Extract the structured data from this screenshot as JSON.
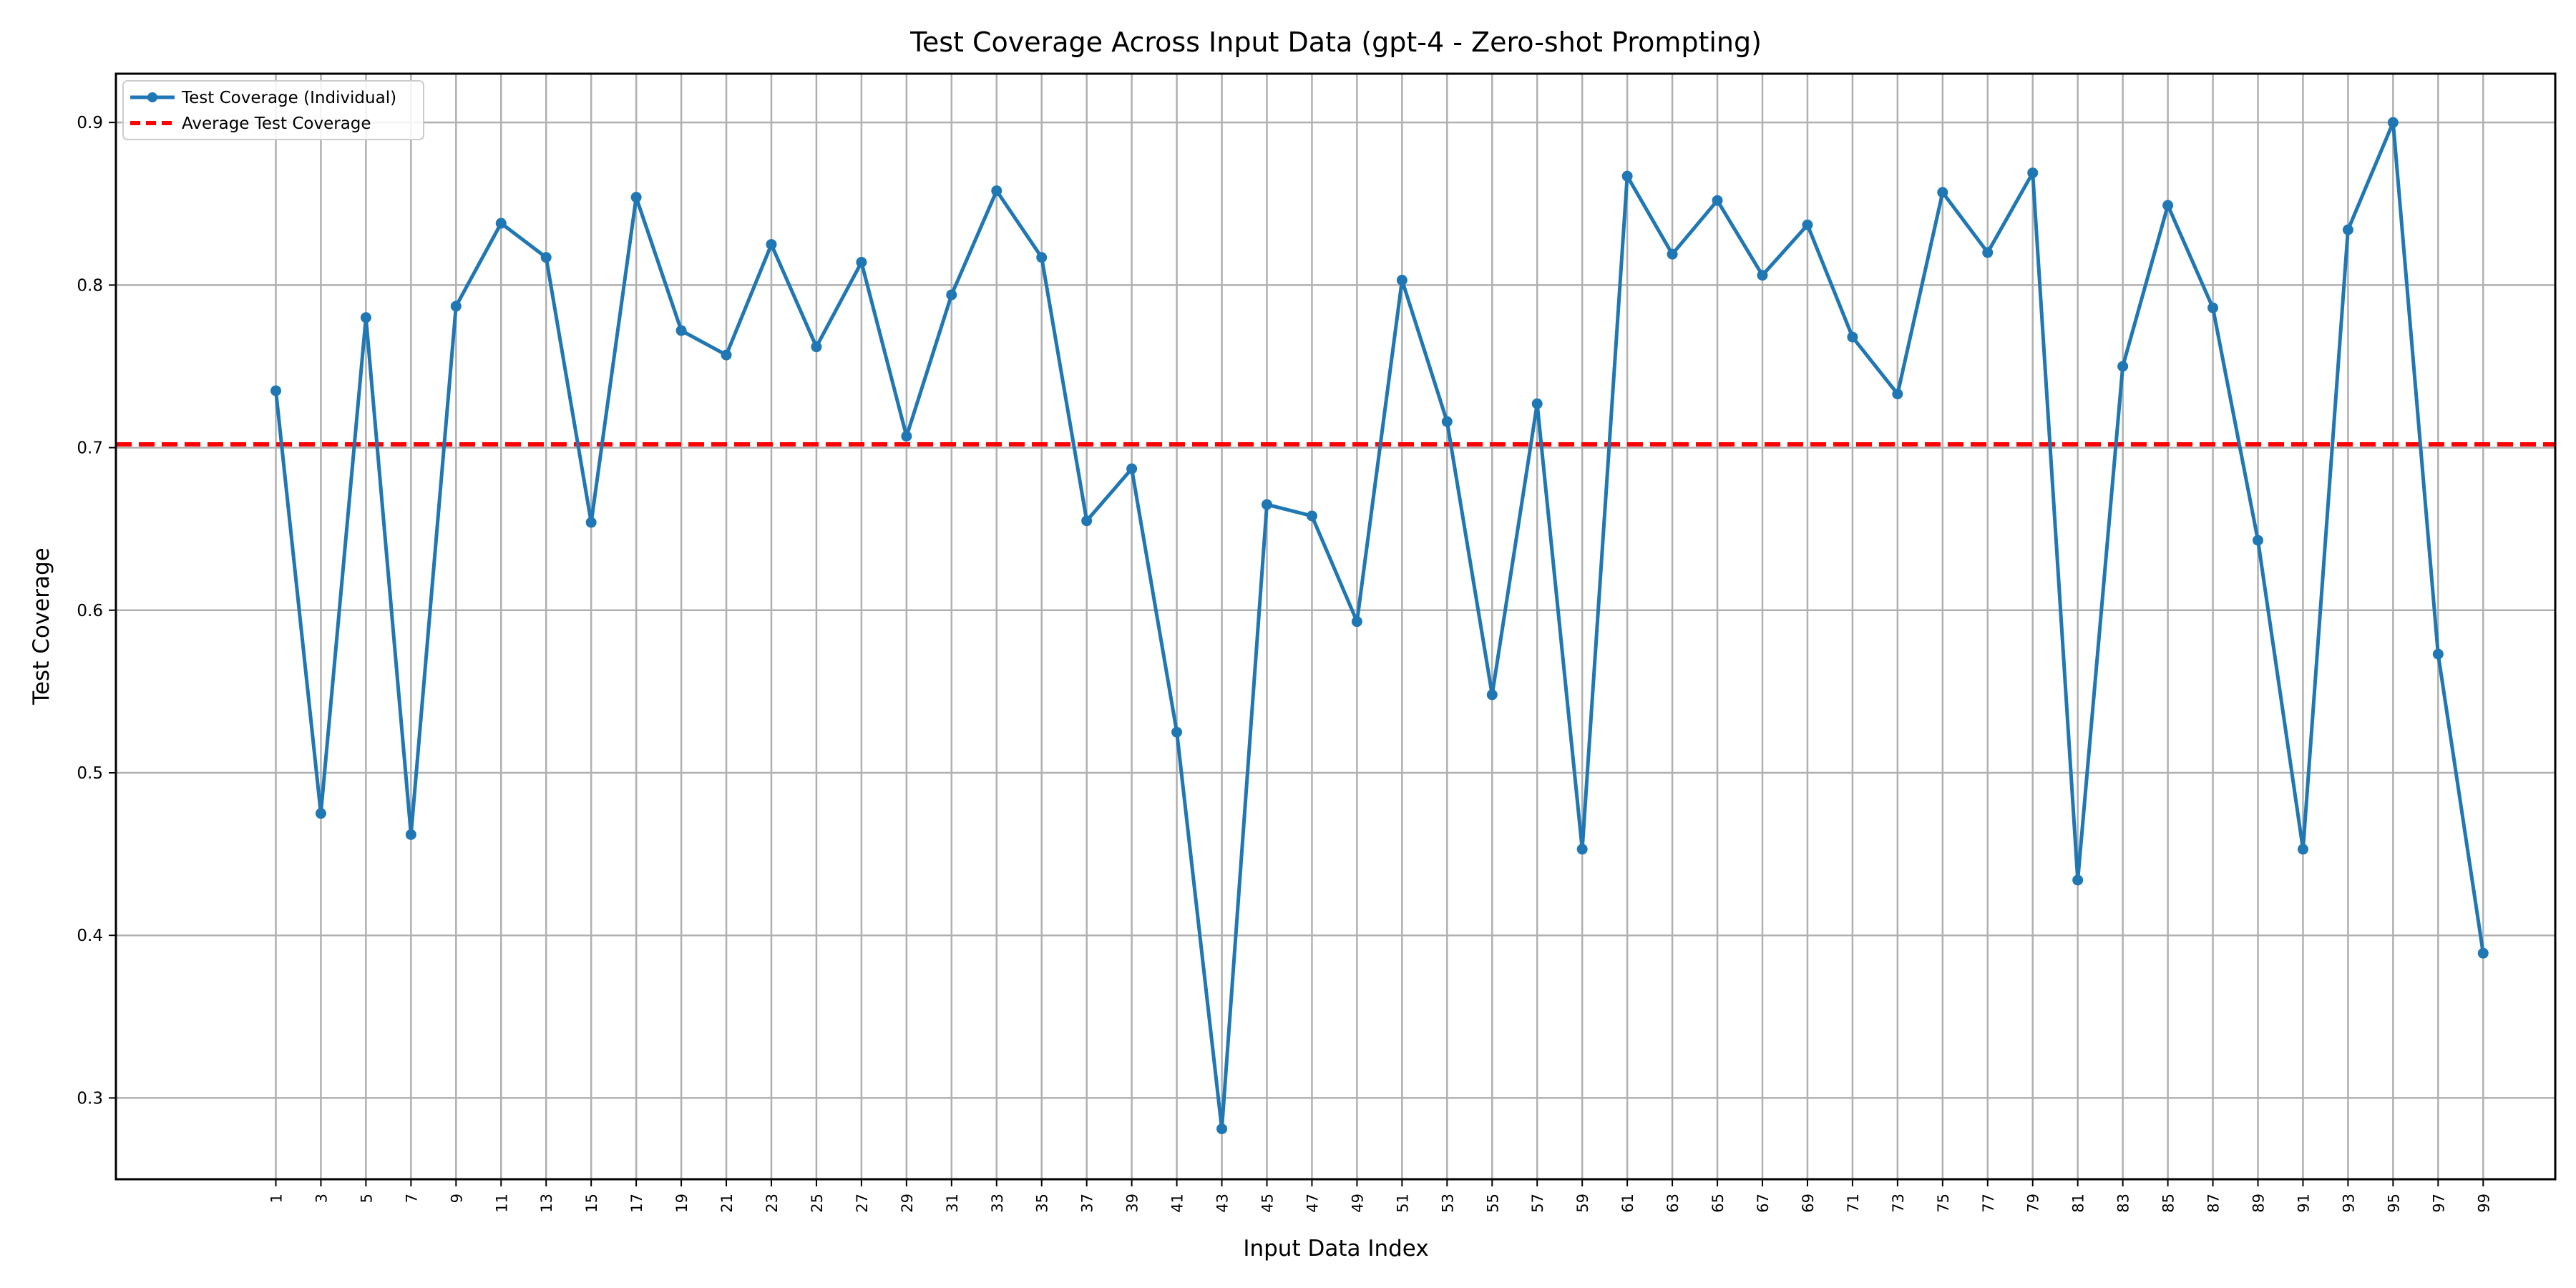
{
  "chart_data": {
    "type": "line",
    "title": "Test Coverage Across Input Data (gpt-4 - Zero-shot Prompting)",
    "xlabel": "Input Data Index",
    "ylabel": "Test Coverage",
    "x": [
      1,
      3,
      5,
      7,
      9,
      11,
      13,
      15,
      17,
      19,
      21,
      23,
      25,
      27,
      29,
      31,
      33,
      35,
      37,
      39,
      41,
      43,
      45,
      47,
      49,
      51,
      53,
      55,
      57,
      59,
      61,
      63,
      65,
      67,
      69,
      71,
      73,
      75,
      77,
      79,
      81,
      83,
      85,
      87,
      89,
      91,
      93,
      95,
      97,
      99
    ],
    "x_ticks": [
      "1",
      "3",
      "5",
      "7",
      "9",
      "11",
      "13",
      "15",
      "17",
      "19",
      "21",
      "23",
      "25",
      "27",
      "29",
      "31",
      "33",
      "35",
      "37",
      "39",
      "41",
      "43",
      "45",
      "47",
      "49",
      "51",
      "53",
      "55",
      "57",
      "59",
      "61",
      "63",
      "65",
      "67",
      "69",
      "71",
      "73",
      "75",
      "77",
      "79",
      "81",
      "83",
      "85",
      "87",
      "89",
      "91",
      "93",
      "95",
      "97",
      "99"
    ],
    "y_ticks": [
      "0.3",
      "0.4",
      "0.5",
      "0.6",
      "0.7",
      "0.8",
      "0.9"
    ],
    "y_tick_values": [
      0.3,
      0.4,
      0.5,
      0.6,
      0.7,
      0.8,
      0.9
    ],
    "xlim": [
      -6.1,
      102.2
    ],
    "ylim": [
      0.25,
      0.93
    ],
    "grid": true,
    "legend_position": "top-left",
    "series": [
      {
        "name": "Test Coverage (Individual)",
        "color": "#1f77b4",
        "style": "line-with-circle-markers",
        "values": [
          0.735,
          0.475,
          0.78,
          0.462,
          0.787,
          0.838,
          0.817,
          0.654,
          0.854,
          0.772,
          0.757,
          0.825,
          0.762,
          0.814,
          0.707,
          0.794,
          0.858,
          0.817,
          0.655,
          0.687,
          0.525,
          0.281,
          0.665,
          0.658,
          0.593,
          0.803,
          0.716,
          0.548,
          0.727,
          0.453,
          0.867,
          0.819,
          0.852,
          0.806,
          0.837,
          0.768,
          0.733,
          0.857,
          0.82,
          0.869,
          0.434,
          0.75,
          0.849,
          0.786,
          0.643,
          0.453,
          0.834,
          0.9,
          0.573,
          0.389
        ]
      },
      {
        "name": "Average Test Coverage",
        "color": "#ff0000",
        "style": "dashed",
        "value": 0.702
      }
    ]
  }
}
